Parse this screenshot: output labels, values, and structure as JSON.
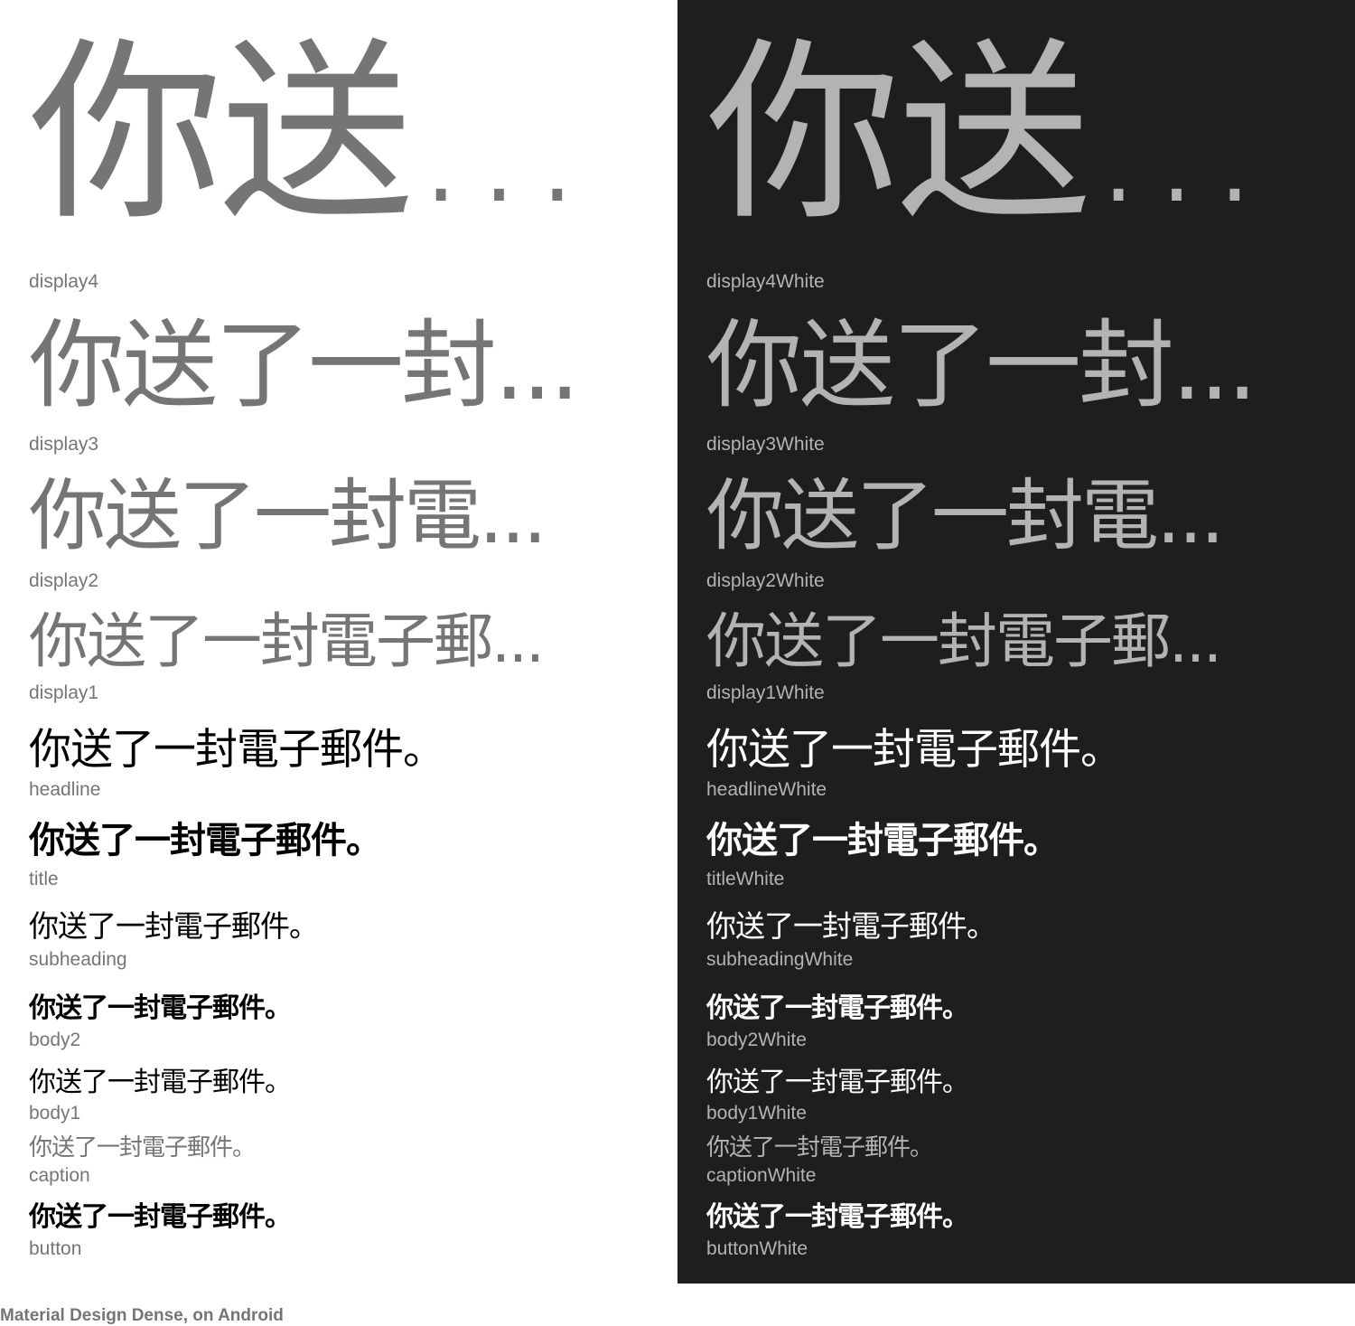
{
  "light": {
    "display4": {
      "sample": "你送...",
      "label": "display4"
    },
    "display3": {
      "sample": "你送了一封...",
      "label": "display3"
    },
    "display2": {
      "sample": "你送了一封電...",
      "label": "display2"
    },
    "display1": {
      "sample": "你送了一封電子郵...",
      "label": "display1"
    },
    "headline": {
      "sample": "你送了一封電子郵件。",
      "label": "headline"
    },
    "title": {
      "sample": "你送了一封電子郵件。",
      "label": "title"
    },
    "subheading": {
      "sample": "你送了一封電子郵件。",
      "label": "subheading"
    },
    "body2": {
      "sample": "你送了一封電子郵件。",
      "label": "body2"
    },
    "body1": {
      "sample": "你送了一封電子郵件。",
      "label": "body1"
    },
    "caption": {
      "sample": "你送了一封電子郵件。",
      "label": "caption"
    },
    "button": {
      "sample": "你送了一封電子郵件。",
      "label": "button"
    }
  },
  "dark": {
    "display4": {
      "sample": "你送...",
      "label": "display4White"
    },
    "display3": {
      "sample": "你送了一封...",
      "label": "display3White"
    },
    "display2": {
      "sample": "你送了一封電...",
      "label": "display2White"
    },
    "display1": {
      "sample": "你送了一封電子郵...",
      "label": "display1White"
    },
    "headline": {
      "sample": "你送了一封電子郵件。",
      "label": "headlineWhite"
    },
    "title": {
      "sample": "你送了一封電子郵件。",
      "label": "titleWhite"
    },
    "subheading": {
      "sample": "你送了一封電子郵件。",
      "label": "subheadingWhite"
    },
    "body2": {
      "sample": "你送了一封電子郵件。",
      "label": "body2White"
    },
    "body1": {
      "sample": "你送了一封電子郵件。",
      "label": "body1White"
    },
    "caption": {
      "sample": "你送了一封電子郵件。",
      "label": "captionWhite"
    },
    "button": {
      "sample": "你送了一封電子郵件。",
      "label": "buttonWhite"
    }
  },
  "colors": {
    "light_background": "#ffffff",
    "dark_background": "#1e1e1e",
    "light_secondary_text": "#757575",
    "dark_secondary_text": "#b3b3b3",
    "light_primary_text": "#000000",
    "dark_primary_text": "#ffffff"
  },
  "footer": {
    "caption": "Material Design Dense, on Android"
  }
}
